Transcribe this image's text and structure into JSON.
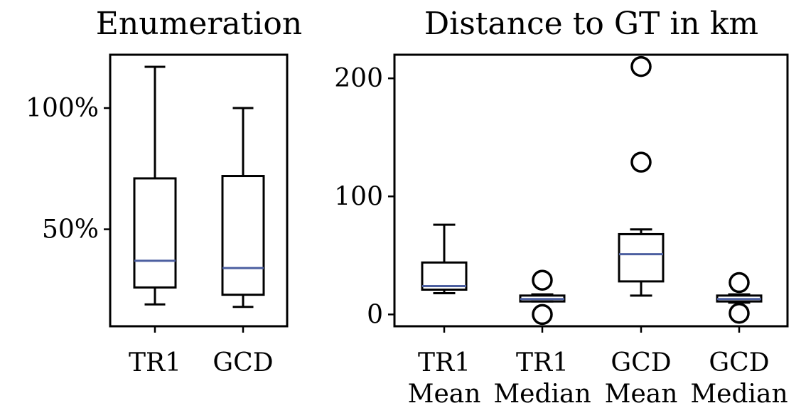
{
  "chart_data": [
    {
      "type": "box",
      "title": "Enumeration",
      "xlabel": "",
      "ylabel": "",
      "categories": [
        "TR1",
        "GCD"
      ],
      "ylim": [
        10,
        122
      ],
      "yticks": [
        {
          "value": 50,
          "label": "50%"
        },
        {
          "value": 100,
          "label": "100%"
        }
      ],
      "boxes": [
        {
          "name": "TR1",
          "whisker_low": 19,
          "q1": 26,
          "median": 37,
          "q3": 71,
          "whisker_high": 117,
          "outliers": []
        },
        {
          "name": "GCD",
          "whisker_low": 18,
          "q1": 23,
          "median": 34,
          "q3": 72,
          "whisker_high": 100,
          "outliers": []
        }
      ]
    },
    {
      "type": "box",
      "title": "Distance to GT in km",
      "xlabel": "",
      "ylabel": "",
      "categories": [
        [
          "TR1",
          "Mean"
        ],
        [
          "TR1",
          "Median"
        ],
        [
          "GCD",
          "Mean"
        ],
        [
          "GCD",
          "Median"
        ]
      ],
      "ylim": [
        -10,
        220
      ],
      "yticks": [
        {
          "value": 0,
          "label": "0"
        },
        {
          "value": 100,
          "label": "100"
        },
        {
          "value": 200,
          "label": "200"
        }
      ],
      "boxes": [
        {
          "name": "TR1 Mean",
          "whisker_low": 18,
          "q1": 21,
          "median": 24,
          "q3": 44,
          "whisker_high": 76,
          "outliers": []
        },
        {
          "name": "TR1 Median",
          "whisker_low": 11,
          "q1": 11,
          "median": 13,
          "q3": 16,
          "whisker_high": 17,
          "outliers": [
            0,
            29
          ]
        },
        {
          "name": "GCD Mean",
          "whisker_low": 16,
          "q1": 28,
          "median": 51,
          "q3": 68,
          "whisker_high": 72,
          "outliers": [
            129,
            210
          ]
        },
        {
          "name": "GCD Median",
          "whisker_low": 10,
          "q1": 11,
          "median": 13,
          "q3": 16,
          "whisker_high": 17,
          "outliers": [
            1,
            27
          ]
        }
      ]
    }
  ],
  "style": {
    "median_color": "#4c5fa0",
    "box_color": "#000000"
  }
}
